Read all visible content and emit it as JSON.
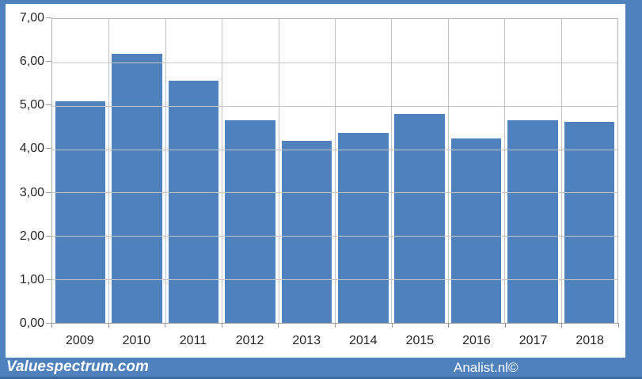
{
  "chart_data": {
    "type": "bar",
    "title": "",
    "xlabel": "",
    "ylabel": "",
    "categories": [
      "2009",
      "2010",
      "2011",
      "2012",
      "2013",
      "2014",
      "2015",
      "2016",
      "2017",
      "2018"
    ],
    "values": [
      5.1,
      6.2,
      5.58,
      4.66,
      4.2,
      4.37,
      4.81,
      4.24,
      4.67,
      4.63
    ],
    "ylim": [
      0,
      7
    ],
    "ytick_labels": [
      "0,00",
      "1,00",
      "2,00",
      "3,00",
      "4,00",
      "5,00",
      "6,00",
      "7,00"
    ],
    "bar_color": "#4f81bd",
    "gridlines": true,
    "legend": "none"
  },
  "footer": {
    "brand": "Valuespectrum.com",
    "credit": "Analist.nl©",
    "background_color": "#4f81bd",
    "text_color": "#ffffff"
  },
  "frame": {
    "border_color": "#4f81bd",
    "plot_border_color": "#b3b3b3",
    "gridline_color": "#c6c6c6",
    "label_color": "#262626"
  }
}
